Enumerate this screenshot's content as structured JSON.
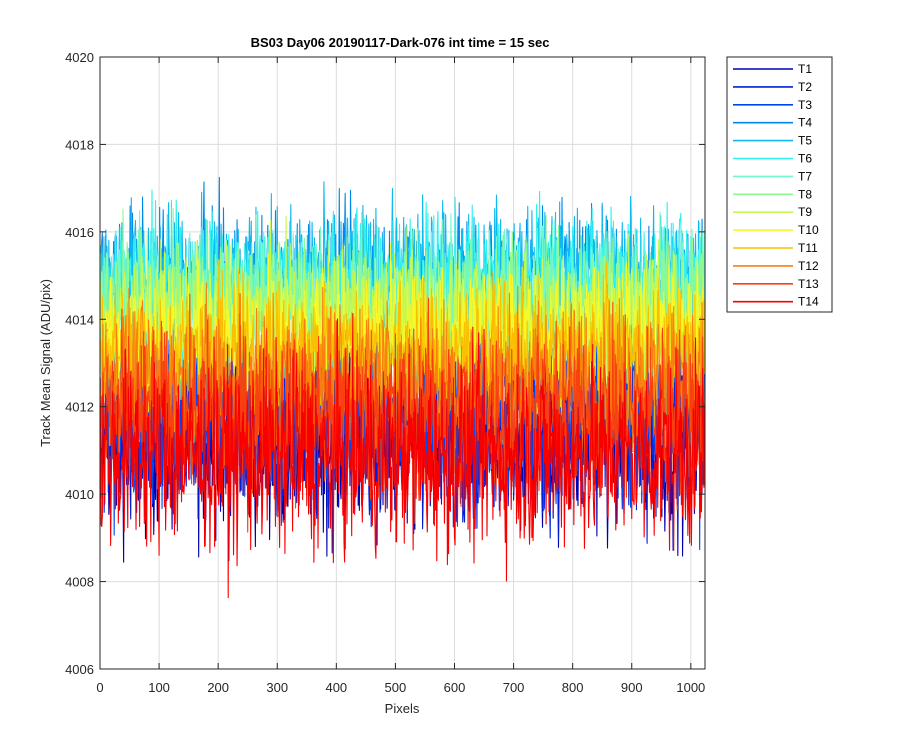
{
  "chart_data": {
    "type": "line",
    "title": "BS03 Day06 20190117-Dark-076 int time = 15 sec",
    "xlabel": "Pixels",
    "ylabel": "Track Mean Signal (ADU/pix)",
    "xlim": [
      0,
      1024
    ],
    "ylim": [
      4006,
      4020
    ],
    "xticks": [
      0,
      100,
      200,
      300,
      400,
      500,
      600,
      700,
      800,
      900,
      1000
    ],
    "yticks": [
      4006,
      4008,
      4010,
      4012,
      4014,
      4016,
      4018,
      4020
    ],
    "grid": true,
    "legend_position": "outside-top-right",
    "n_points": 1024,
    "series": [
      {
        "name": "T1",
        "color": "#0000af",
        "mean": 4011.3,
        "noise": 1.1
      },
      {
        "name": "T2",
        "color": "#0020d8",
        "mean": 4011.6,
        "noise": 1.1
      },
      {
        "name": "T3",
        "color": "#0048f0",
        "mean": 4012.0,
        "noise": 1.1
      },
      {
        "name": "T4",
        "color": "#0088e8",
        "mean": 4014.6,
        "noise": 0.9
      },
      {
        "name": "T5",
        "color": "#10b8f0",
        "mean": 4015.0,
        "noise": 0.8
      },
      {
        "name": "T6",
        "color": "#30f0f0",
        "mean": 4014.8,
        "noise": 0.8
      },
      {
        "name": "T7",
        "color": "#70f8c8",
        "mean": 4014.5,
        "noise": 0.8
      },
      {
        "name": "T8",
        "color": "#90f890",
        "mean": 4014.3,
        "noise": 0.8
      },
      {
        "name": "T9",
        "color": "#c8f850",
        "mean": 4014.0,
        "noise": 0.8
      },
      {
        "name": "T10",
        "color": "#f8f828",
        "mean": 4013.6,
        "noise": 0.8
      },
      {
        "name": "T11",
        "color": "#f8c000",
        "mean": 4013.2,
        "noise": 0.8
      },
      {
        "name": "T12",
        "color": "#f88010",
        "mean": 4012.6,
        "noise": 0.9
      },
      {
        "name": "T13",
        "color": "#f84010",
        "mean": 4011.8,
        "noise": 1.0
      },
      {
        "name": "T14",
        "color": "#f80000",
        "mean": 4010.9,
        "noise": 1.1
      }
    ]
  }
}
